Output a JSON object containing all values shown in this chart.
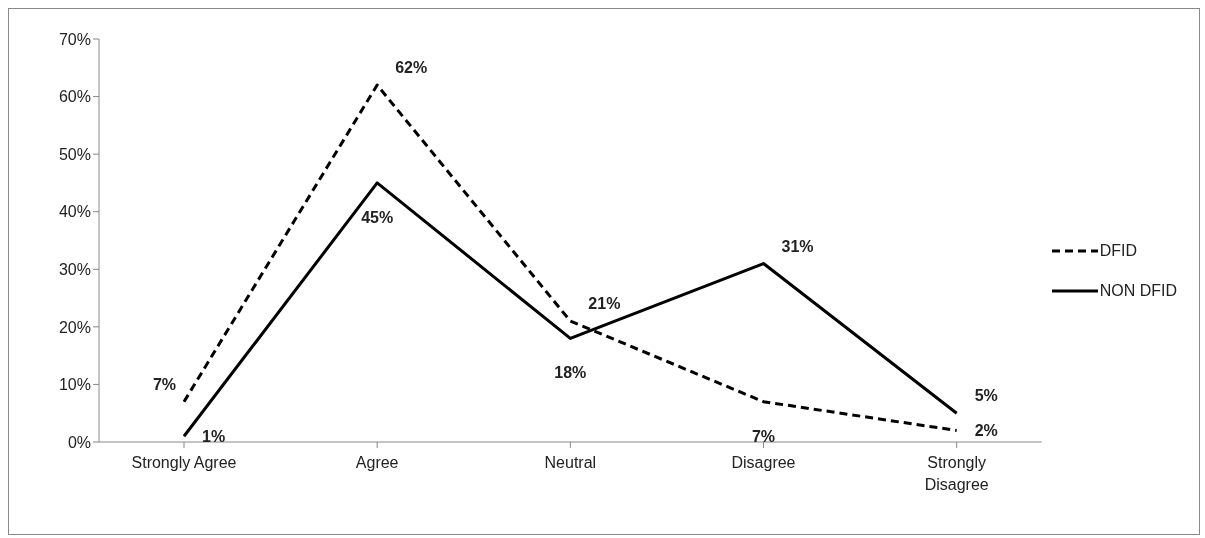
{
  "chart_data": {
    "type": "line",
    "categories": [
      "Strongly Agree",
      "Agree",
      "Neutral",
      "Disagree",
      "Strongly\nDisagree"
    ],
    "series": [
      {
        "name": "DFID",
        "color": "#000000",
        "line_style": "dashed",
        "values": [
          7,
          62,
          21,
          7,
          2
        ],
        "value_labels": [
          "7%",
          "62%",
          "21%",
          "7%",
          "2%"
        ]
      },
      {
        "name": "NON DFID",
        "color": "#000000",
        "line_style": "solid",
        "values": [
          1,
          45,
          18,
          31,
          5
        ],
        "value_labels": [
          "1%",
          "45%",
          "18%",
          "31%",
          "5%"
        ]
      }
    ],
    "ylim": [
      0,
      70
    ],
    "yticks": [
      {
        "value": 0,
        "label": "0%"
      },
      {
        "value": 10,
        "label": "10%"
      },
      {
        "value": 20,
        "label": "20%"
      },
      {
        "value": 30,
        "label": "30%"
      },
      {
        "value": 40,
        "label": "40%"
      },
      {
        "value": 50,
        "label": "50%"
      },
      {
        "value": 60,
        "label": "60%"
      },
      {
        "value": 70,
        "label": "70%"
      }
    ],
    "legend": "right",
    "marker": "none"
  }
}
